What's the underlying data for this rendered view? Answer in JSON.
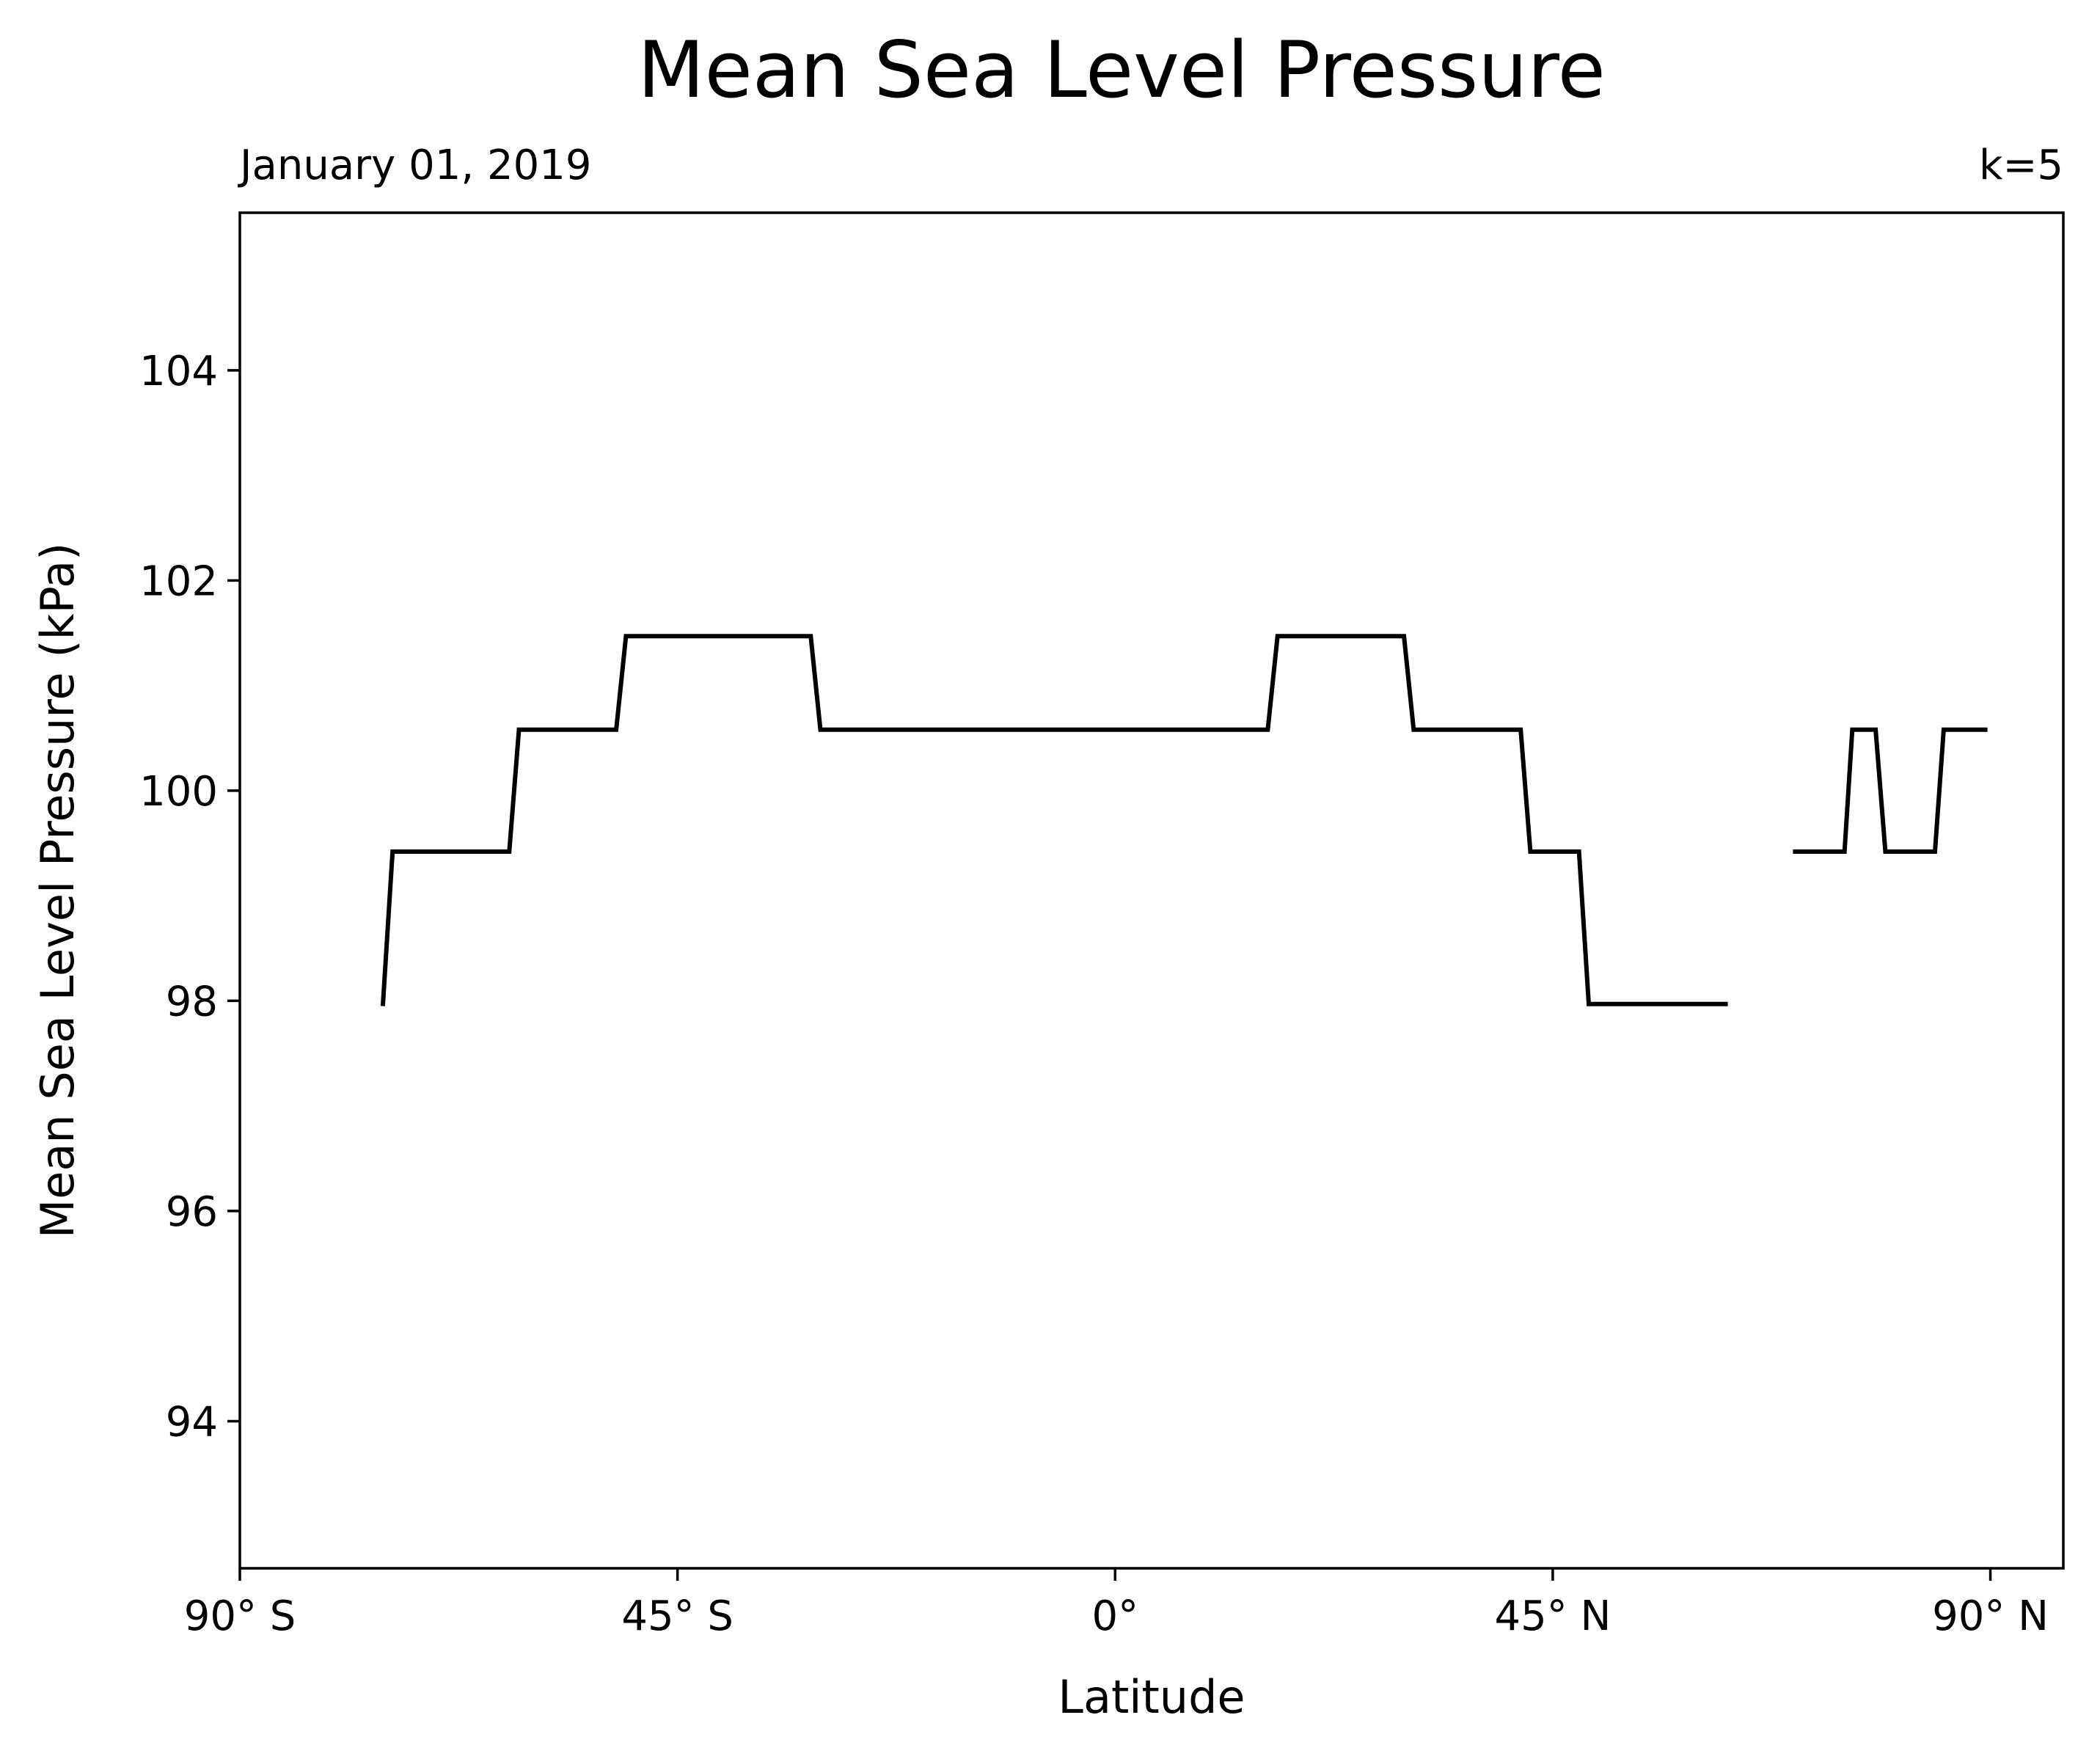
{
  "chart_data": {
    "type": "line",
    "title": "Mean Sea Level Pressure",
    "left_subtitle": "January 01, 2019",
    "right_subtitle": "k=5",
    "xlabel": "Latitude",
    "ylabel": "Mean Sea Level Pressure (kPa)",
    "xlim": [
      -90,
      97.5
    ],
    "ylim": [
      92.6,
      105.5
    ],
    "x_ticks": [
      {
        "value": -90,
        "label": "90° S"
      },
      {
        "value": -45,
        "label": "45° S"
      },
      {
        "value": 0,
        "label": "0°"
      },
      {
        "value": 45,
        "label": "45° N"
      },
      {
        "value": 90,
        "label": "90° N"
      }
    ],
    "y_ticks": [
      {
        "value": 94,
        "label": "94"
      },
      {
        "value": 96,
        "label": "96"
      },
      {
        "value": 98,
        "label": "98"
      },
      {
        "value": 100,
        "label": "100"
      },
      {
        "value": 102,
        "label": "102"
      },
      {
        "value": 104,
        "label": "104"
      }
    ],
    "grid": false,
    "line_color": "#000000",
    "series": [
      {
        "segments": [
          [
            [
              -75.3,
              97.95
            ],
            [
              -74.3,
              99.42
            ],
            [
              -62.3,
              99.42
            ],
            [
              -61.3,
              100.58
            ],
            [
              -51.3,
              100.58
            ],
            [
              -50.3,
              101.47
            ],
            [
              -31.3,
              101.47
            ],
            [
              -30.3,
              100.58
            ],
            [
              15.7,
              100.58
            ],
            [
              16.7,
              101.47
            ],
            [
              29.7,
              101.47
            ],
            [
              30.7,
              100.58
            ],
            [
              41.7,
              100.58
            ],
            [
              42.7,
              99.42
            ],
            [
              47.7,
              99.42
            ],
            [
              48.7,
              97.97
            ],
            [
              63.0,
              97.97
            ]
          ],
          [
            [
              69.7,
              99.42
            ],
            [
              75.0,
              99.42
            ],
            [
              75.8,
              100.58
            ],
            [
              78.2,
              100.58
            ],
            [
              79.2,
              99.42
            ],
            [
              84.3,
              99.42
            ],
            [
              85.2,
              100.58
            ],
            [
              89.7,
              100.58
            ]
          ]
        ]
      }
    ]
  }
}
